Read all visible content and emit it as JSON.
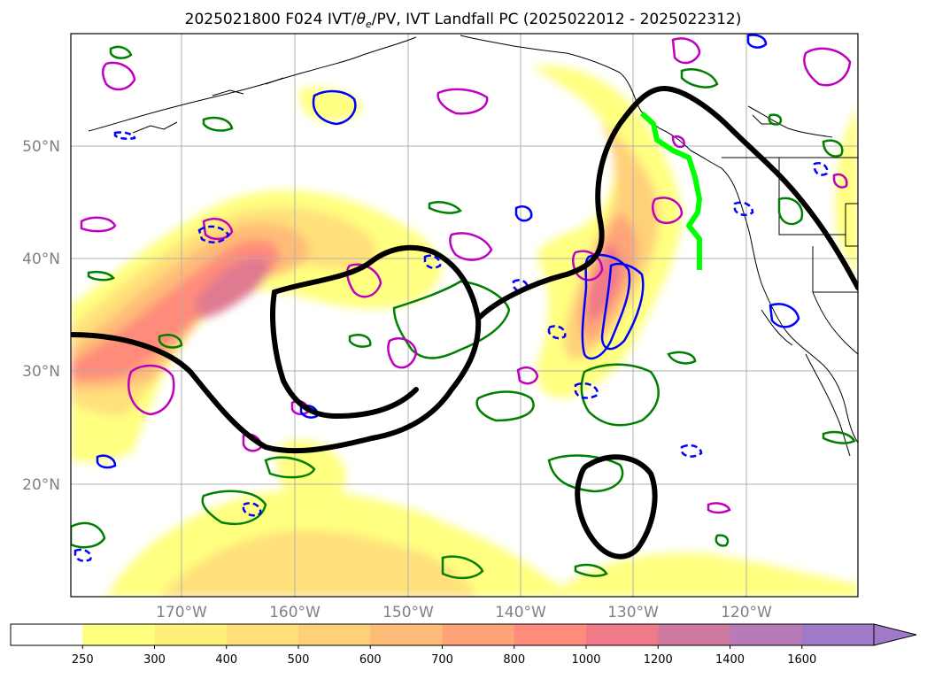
{
  "title": {
    "prefix": "2025021800 F024 IVT/",
    "theta": "θ",
    "theta_sub": "e",
    "suffix": "/PV, IVT Landfall PC (2025022012 - 2025022312)"
  },
  "lat_labels": [
    "50°N",
    "40°N",
    "30°N",
    "20°N"
  ],
  "lon_labels": [
    "170°W",
    "160°W",
    "150°W",
    "140°W",
    "130°W",
    "120°W"
  ],
  "colorbar": {
    "ticks": [
      "250",
      "300",
      "400",
      "500",
      "600",
      "700",
      "800",
      "1000",
      "1200",
      "1400",
      "1600"
    ],
    "colors": [
      "#ffffff",
      "#ffff80",
      "#fff07a",
      "#ffe07a",
      "#ffd07a",
      "#ffbc78",
      "#ffa478",
      "#ff8c7a",
      "#f07a88",
      "#d07aa0",
      "#b87ab8",
      "#a07ac8"
    ]
  },
  "colors": {
    "ar_contour": "#000000",
    "landfall_line": "#00ff00",
    "theta_e": "#0000ff",
    "pv": "#c000c0",
    "green_contour": "#008000"
  }
}
